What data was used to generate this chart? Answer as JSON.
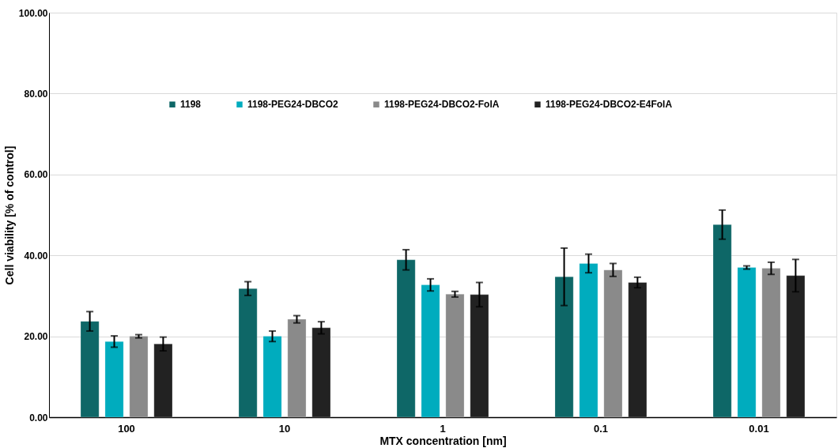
{
  "chart_data": {
    "type": "bar",
    "xlabel": "MTX concentration [nm]",
    "ylabel": "Cell viability [% of control]",
    "categories": [
      "100",
      "10",
      "1",
      "0.1",
      "0.01"
    ],
    "series": [
      {
        "name": "1198",
        "color": "#0e6767",
        "values": [
          23.7,
          31.8,
          38.9,
          34.7,
          47.6
        ],
        "errors": [
          2.4,
          1.7,
          2.5,
          7.1,
          3.6
        ]
      },
      {
        "name": "1198-PEG24-DBCO2",
        "color": "#00acbe",
        "values": [
          18.7,
          20.0,
          32.7,
          38.0,
          37.0
        ],
        "errors": [
          1.4,
          1.3,
          1.5,
          2.3,
          0.4
        ]
      },
      {
        "name": "1198-PEG24-DBCO2-FolA",
        "color": "#8a8a8a",
        "values": [
          20.0,
          24.2,
          30.4,
          36.4,
          36.8
        ],
        "errors": [
          0.4,
          0.9,
          0.7,
          1.6,
          1.5
        ]
      },
      {
        "name": "1198-PEG24-DBCO2-E4FolA",
        "color": "#222222",
        "values": [
          18.1,
          22.1,
          30.3,
          33.3,
          35.0
        ],
        "errors": [
          1.7,
          1.5,
          3.0,
          1.3,
          4.0
        ]
      }
    ],
    "ylim": [
      0,
      100
    ],
    "yticks": [
      {
        "value": 0,
        "label": "0.00"
      },
      {
        "value": 20,
        "label": "20.00"
      },
      {
        "value": 40,
        "label": "40.00"
      },
      {
        "value": 60,
        "label": "60.00"
      },
      {
        "value": 80,
        "label": "80.00"
      },
      {
        "value": 100,
        "label": "100.00"
      }
    ],
    "grid": "y",
    "legend": "top"
  }
}
